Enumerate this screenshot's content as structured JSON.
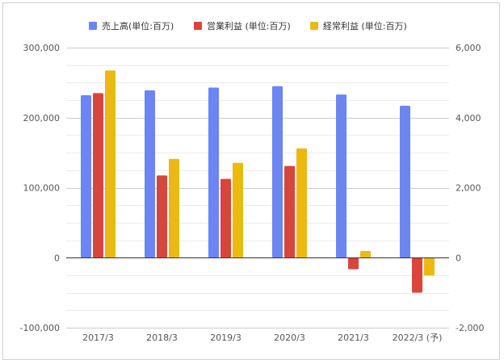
{
  "chart_data": {
    "type": "bar",
    "categories": [
      "2017/3",
      "2018/3",
      "2019/3",
      "2020/3",
      "2021/3",
      "2022/3 (予)"
    ],
    "series": [
      {
        "name": "売上高(単位:百万)",
        "axis": "left",
        "color": "#6c85f0",
        "values": [
          232000,
          239000,
          243000,
          245000,
          233000,
          217000
        ]
      },
      {
        "name": "営業利益 (単位:百万)",
        "axis": "right",
        "color": "#d9453a",
        "values": [
          4700,
          2350,
          2250,
          2620,
          -330,
          -1000
        ]
      },
      {
        "name": "経常利益 (単位:百万)",
        "axis": "right",
        "color": "#ebb912",
        "values": [
          5350,
          2820,
          2710,
          3120,
          190,
          -510
        ]
      }
    ],
    "left_axis": {
      "ylim": [
        -100000,
        300000
      ],
      "ticks": [
        -100000,
        0,
        100000,
        200000,
        300000
      ],
      "tick_labels": [
        "-100,000",
        "0",
        "100,000",
        "200,000",
        "300,000"
      ]
    },
    "right_axis": {
      "ylim": [
        -2000,
        6000
      ],
      "ticks": [
        -2000,
        0,
        2000,
        4000,
        6000
      ],
      "tick_labels": [
        "-2,000",
        "0",
        "2,000",
        "4,000",
        "6,000"
      ]
    },
    "legend_position": "top",
    "grid": true
  }
}
